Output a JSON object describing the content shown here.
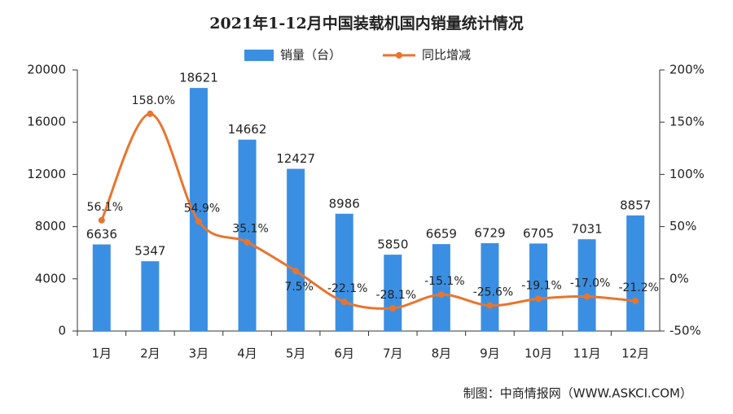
{
  "chart_data": {
    "type": "bar_line",
    "title": "2021年1-12月中国装载机国内销量统计情况",
    "categories": [
      "1月",
      "2月",
      "3月",
      "4月",
      "5月",
      "6月",
      "7月",
      "8月",
      "9月",
      "10月",
      "11月",
      "12月"
    ],
    "series": [
      {
        "name": "销量（台）",
        "type": "bar",
        "color": "#3b8fe2",
        "values": [
          6636,
          5347,
          18621,
          14662,
          12427,
          8986,
          5850,
          6659,
          6729,
          6705,
          7031,
          8857
        ]
      },
      {
        "name": "同比增减",
        "type": "line",
        "axis": "y2",
        "color": "#e8752f",
        "values": [
          56.1,
          158.0,
          54.9,
          35.1,
          7.5,
          -22.1,
          -28.1,
          -15.1,
          -25.6,
          -19.1,
          -17.0,
          -21.2
        ],
        "value_labels": [
          "56.1%",
          "158.0%",
          "54.9%",
          "35.1%",
          "7.5%",
          "-22.1%",
          "-28.1%",
          "-15.1%",
          "-25.6%",
          "-19.1%",
          "-17.0%",
          "-21.2%"
        ]
      }
    ],
    "ylim": [
      0,
      20000
    ],
    "yticks": [
      0,
      4000,
      8000,
      12000,
      16000,
      20000
    ],
    "y2lim": [
      -50,
      200
    ],
    "y2ticks": [
      {
        "value": -50,
        "label": "-50%"
      },
      {
        "value": 0,
        "label": "0%"
      },
      {
        "value": 50,
        "label": "50%"
      },
      {
        "value": 100,
        "label": "100%"
      },
      {
        "value": 150,
        "label": "150%"
      },
      {
        "value": 200,
        "label": "200%"
      }
    ],
    "source": "制图：中商情报网（WWW.ASKCI.COM）"
  }
}
